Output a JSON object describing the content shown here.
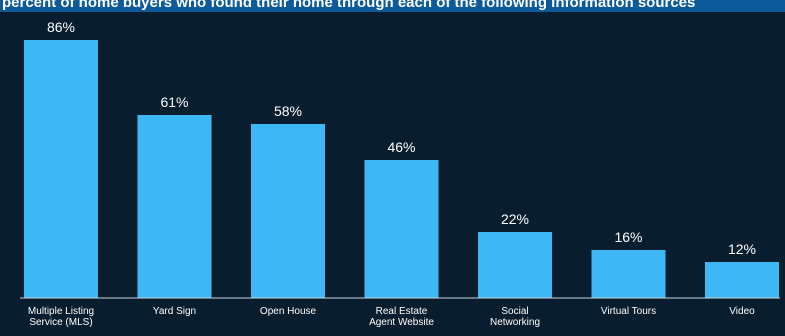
{
  "header": {
    "caption": "percent of home buyers who found their home through each of the following information sources"
  },
  "colors": {
    "background": "#081d2e",
    "bar": "#3db8f5",
    "header_band": "#0d5a9a",
    "text": "#ffffff"
  },
  "chart_data": {
    "type": "bar",
    "categories": [
      [
        "Multiple Listing",
        "Service (MLS)"
      ],
      [
        "Yard Sign"
      ],
      [
        "Open House"
      ],
      [
        "Real Estate",
        "Agent Website"
      ],
      [
        "Social",
        "Networking"
      ],
      [
        "Virtual Tours"
      ],
      [
        "Video"
      ]
    ],
    "values": [
      86,
      61,
      58,
      46,
      22,
      16,
      12
    ],
    "value_labels": [
      "86%",
      "61%",
      "58%",
      "46%",
      "22%",
      "16%",
      "12%"
    ],
    "title": "",
    "xlabel": "",
    "ylabel": "",
    "ylim": [
      0,
      100
    ],
    "grid": false,
    "legend": "none"
  }
}
